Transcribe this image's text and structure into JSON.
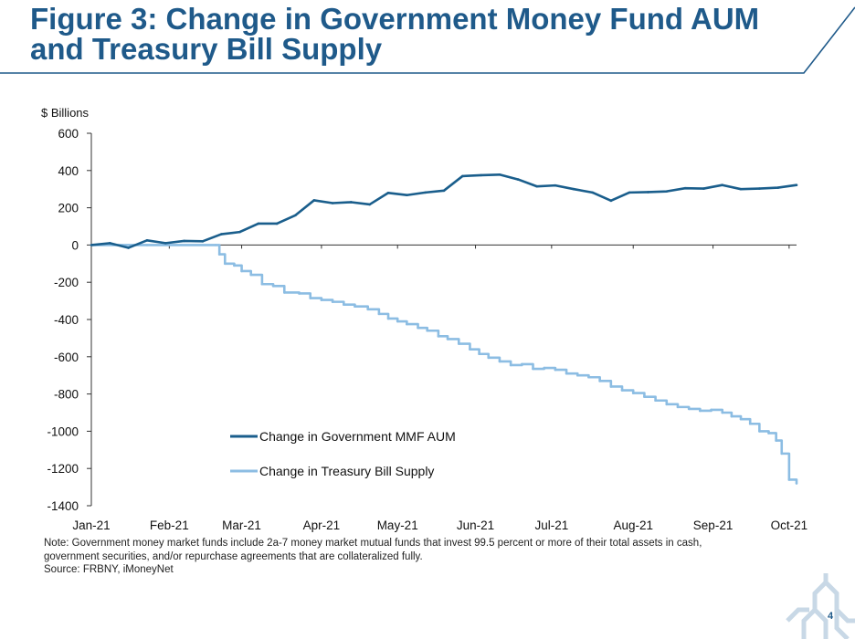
{
  "slide": {
    "title_line1": "Figure 3: Change in Government Money Fund AUM",
    "title_line2": "and Treasury Bill Supply",
    "note_line1": "Note: Government money market funds include 2a-7 money market mutual funds that invest 99.5 percent or more of their total assets in cash,",
    "note_line2": "government securities, and/or repurchase agreements that are collateralized fully.",
    "source": "Source: FRBNY, iMoneyNet",
    "page_number": "4",
    "accent_color": "#1f5a8a",
    "logo_icon": "fed-seal-icon"
  },
  "chart_data": {
    "type": "line",
    "title": "",
    "xlabel": "",
    "ylabel": "$ Billions",
    "ylim": [
      -1400,
      600
    ],
    "yticks": [
      600,
      400,
      200,
      0,
      -200,
      -400,
      -600,
      -800,
      -1000,
      -1200,
      -1400
    ],
    "xlim": [
      0,
      38
    ],
    "xtick_positions": [
      0,
      4.2,
      8.1,
      12.4,
      16.5,
      20.7,
      24.8,
      29.2,
      33.5,
      37.6
    ],
    "xtick_labels": [
      "Jan-21",
      "Feb-21",
      "Mar-21",
      "Apr-21",
      "May-21",
      "Jun-21",
      "Jul-21",
      "Aug-21",
      "Sep-21",
      "Oct-21"
    ],
    "grid": false,
    "legend_position": "lower-center",
    "series": [
      {
        "name": "Change in Government MMF AUM",
        "color": "#1a5e8c",
        "step": false,
        "x": [
          0,
          1,
          2,
          3,
          4,
          5,
          6,
          7,
          8,
          9,
          10,
          11,
          12,
          13,
          14,
          15,
          16,
          17,
          18,
          19,
          20,
          21,
          22,
          23,
          24,
          25,
          26,
          27,
          28,
          29,
          30,
          31,
          32,
          33,
          34,
          35,
          36,
          37,
          38
        ],
        "values": [
          0,
          10,
          -15,
          25,
          10,
          22,
          20,
          58,
          70,
          115,
          115,
          160,
          240,
          225,
          230,
          218,
          280,
          268,
          282,
          292,
          370,
          375,
          378,
          352,
          315,
          320,
          300,
          282,
          238,
          282,
          284,
          288,
          305,
          303,
          322,
          300,
          303,
          308,
          322
        ]
      },
      {
        "name": "Change in Treasury Bill Supply",
        "color": "#8cbde3",
        "step": true,
        "x": [
          0,
          3,
          6.7,
          6.9,
          7.2,
          7.7,
          8.1,
          8.6,
          9.2,
          9.8,
          10.4,
          11.2,
          11.8,
          12.4,
          13.0,
          13.6,
          14.2,
          14.9,
          15.5,
          16.0,
          16.5,
          17.0,
          17.6,
          18.1,
          18.7,
          19.2,
          19.8,
          20.4,
          20.9,
          21.4,
          22.0,
          22.6,
          23.2,
          23.8,
          24.4,
          25.0,
          25.6,
          26.2,
          26.8,
          27.4,
          28.0,
          28.6,
          29.2,
          29.8,
          30.4,
          31.0,
          31.6,
          32.2,
          32.8,
          33.4,
          34.0,
          34.5,
          35.0,
          35.5,
          36.0,
          36.5,
          36.9,
          37.2,
          37.6,
          38.0
        ],
        "values": [
          0,
          0,
          0,
          -50,
          -100,
          -110,
          -140,
          -160,
          -210,
          -220,
          -255,
          -260,
          -285,
          -295,
          -305,
          -320,
          -330,
          -345,
          -370,
          -395,
          -410,
          -425,
          -445,
          -460,
          -490,
          -505,
          -530,
          -560,
          -585,
          -605,
          -625,
          -645,
          -640,
          -665,
          -660,
          -670,
          -690,
          -700,
          -710,
          -730,
          -760,
          -780,
          -795,
          -815,
          -835,
          -855,
          -870,
          -880,
          -890,
          -885,
          -900,
          -920,
          -935,
          -960,
          -1000,
          -1010,
          -1050,
          -1120,
          -1260,
          -1280
        ]
      }
    ]
  }
}
